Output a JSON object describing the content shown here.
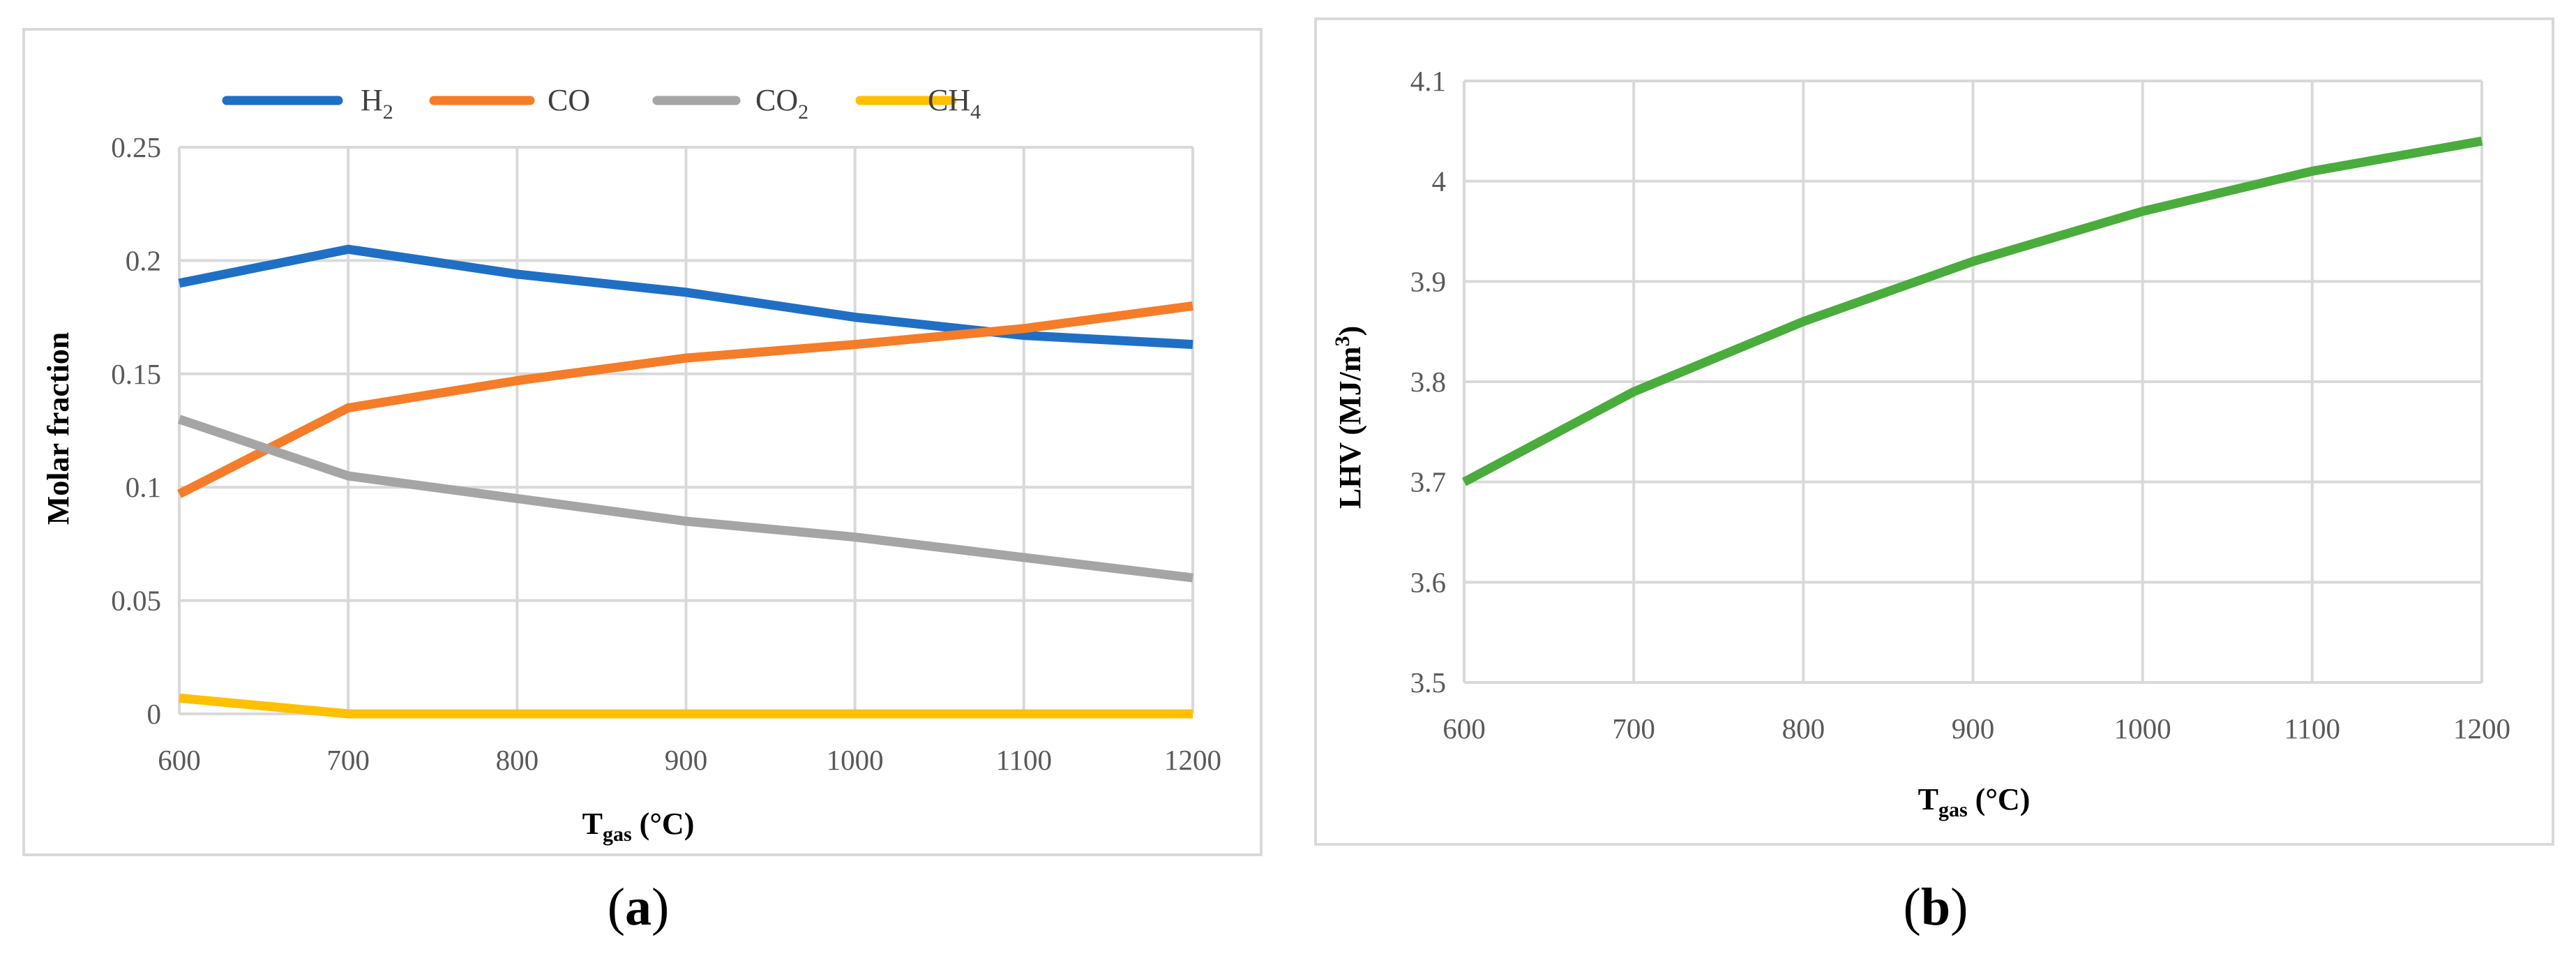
{
  "chart_data": [
    {
      "type": "line",
      "panel_label": {
        "open": "(",
        "letter": "a",
        "close": ")"
      },
      "title": "",
      "xlabel": {
        "main": "T",
        "sub": "gas",
        "rest": " (°C)"
      },
      "ylabel": "Molar fraction",
      "x": [
        600,
        700,
        800,
        900,
        1000,
        1100,
        1200
      ],
      "xticks": [
        "600",
        "700",
        "800",
        "900",
        "1000",
        "1100",
        "1200"
      ],
      "ylim": [
        0,
        0.25
      ],
      "yticks": [
        "0",
        "0.05",
        "0.1",
        "0.15",
        "0.2",
        "0.25"
      ],
      "ytick_values": [
        0,
        0.05,
        0.1,
        0.15,
        0.2,
        0.25
      ],
      "grid": true,
      "legend_position": "top",
      "series": [
        {
          "name": "H2",
          "label_main": "H",
          "label_sub": "2",
          "color": "#1f6fc5",
          "values": [
            0.19,
            0.205,
            0.194,
            0.186,
            0.175,
            0.167,
            0.163
          ]
        },
        {
          "name": "CO",
          "label_main": "CO",
          "label_sub": "",
          "color": "#f57c29",
          "values": [
            0.097,
            0.135,
            0.147,
            0.157,
            0.163,
            0.17,
            0.18
          ]
        },
        {
          "name": "CO2",
          "label_main": "CO",
          "label_sub": "2",
          "color": "#a5a5a5",
          "values": [
            0.13,
            0.105,
            0.095,
            0.085,
            0.078,
            0.069,
            0.06
          ]
        },
        {
          "name": "CH4",
          "label_main": "CH",
          "label_sub": "4",
          "color": "#ffc000",
          "values": [
            0.007,
            0.0,
            0.0,
            0.0,
            0.0,
            0.0,
            0.0
          ]
        }
      ]
    },
    {
      "type": "line",
      "panel_label": {
        "open": "(",
        "letter": "b",
        "close": ")"
      },
      "title": "",
      "xlabel": {
        "main": "T",
        "sub": "gas",
        "rest": " (°C)"
      },
      "ylabel": {
        "main": "LHV (MJ/m",
        "sup": "3",
        "close": ")"
      },
      "x": [
        600,
        700,
        800,
        900,
        1000,
        1100,
        1200
      ],
      "xticks": [
        "600",
        "700",
        "800",
        "900",
        "1000",
        "1100",
        "1200"
      ],
      "ylim": [
        3.5,
        4.1
      ],
      "yticks": [
        "3.5",
        "3.6",
        "3.7",
        "3.8",
        "3.9",
        "4",
        "4.1"
      ],
      "ytick_values": [
        3.5,
        3.6,
        3.7,
        3.8,
        3.9,
        4.0,
        4.1
      ],
      "grid": true,
      "series": [
        {
          "name": "LHV",
          "color": "#4aac3c",
          "values": [
            3.7,
            3.79,
            3.86,
            3.92,
            3.97,
            4.01,
            4.04
          ]
        }
      ]
    }
  ]
}
